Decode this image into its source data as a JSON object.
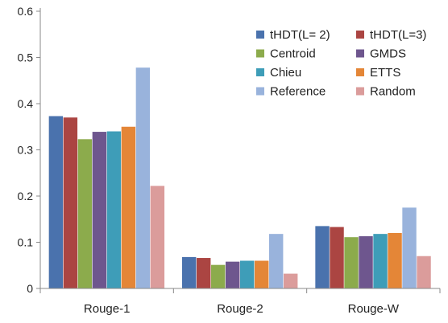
{
  "chart_data": {
    "type": "bar",
    "categories": [
      "Rouge-1",
      "Rouge-2",
      "Rouge-W"
    ],
    "ylim": [
      0,
      0.6
    ],
    "yticks": [
      "0",
      "0.1",
      "0.2",
      "0.3",
      "0.4",
      "0.5",
      "0.6"
    ],
    "ytick_values": [
      0,
      0.1,
      0.2,
      0.3,
      0.4,
      0.5,
      0.6
    ],
    "grid": false,
    "legend_position": "top-right",
    "series": [
      {
        "name": "tHDT(L= 2)",
        "color": "#4a72ad",
        "values": [
          0.373,
          0.068,
          0.135
        ]
      },
      {
        "name": "tHDT(L=3)",
        "color": "#ab4542",
        "values": [
          0.37,
          0.066,
          0.133
        ]
      },
      {
        "name": "Centroid",
        "color": "#8cab4c",
        "values": [
          0.323,
          0.051,
          0.111
        ]
      },
      {
        "name": "GMDS",
        "color": "#6e568e",
        "values": [
          0.339,
          0.058,
          0.113
        ]
      },
      {
        "name": "Chieu",
        "color": "#3e9db8",
        "values": [
          0.34,
          0.06,
          0.118
        ]
      },
      {
        "name": "ETTS",
        "color": "#e48637",
        "values": [
          0.35,
          0.06,
          0.12
        ]
      },
      {
        "name": "Reference",
        "color": "#99b3dc",
        "values": [
          0.478,
          0.118,
          0.175
        ]
      },
      {
        "name": "Random",
        "color": "#db9c9b",
        "values": [
          0.222,
          0.032,
          0.07
        ]
      }
    ]
  }
}
